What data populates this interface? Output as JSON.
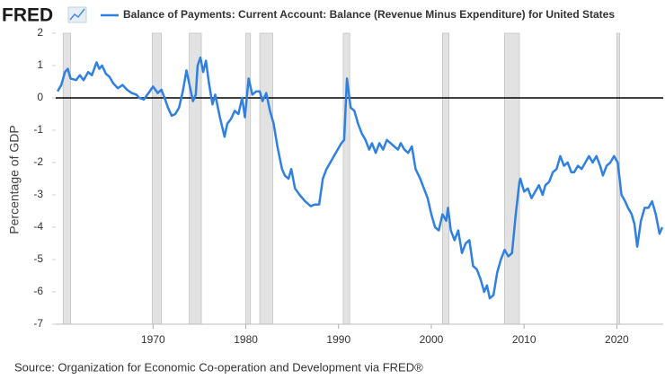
{
  "chart_data": {
    "type": "line",
    "logo": "FRED",
    "source": "Source: Organization for Economic Co-operation and Development via FRED®",
    "ylabel": "Percentage of GDP",
    "xlim": [
      1959.5,
      2025.0
    ],
    "xticks": [
      1970,
      1980,
      1990,
      2000,
      2010,
      2020
    ],
    "ylim": [
      -7,
      2
    ],
    "yticks": [
      2,
      1,
      0,
      -1,
      -2,
      -3,
      -4,
      -5,
      -6,
      -7
    ],
    "hline": 0,
    "shading": [
      [
        1960.3,
        1961.1
      ],
      [
        1969.9,
        1970.9
      ],
      [
        1973.9,
        1975.2
      ],
      [
        1980.0,
        1980.5
      ],
      [
        1981.5,
        1982.9
      ],
      [
        1990.5,
        1991.2
      ],
      [
        2001.2,
        2001.9
      ],
      [
        2007.9,
        2009.5
      ],
      [
        2020.0,
        2020.3
      ]
    ],
    "series": [
      {
        "name": "Balance of Payments: Current Account: Balance (Revenue Minus Expenditure) for United States",
        "color": "#2f80e0",
        "x": [
          1959.7,
          1960.1,
          1960.5,
          1960.8,
          1961.1,
          1961.7,
          1962.1,
          1962.5,
          1963.0,
          1963.4,
          1963.9,
          1964.2,
          1964.5,
          1964.9,
          1965.3,
          1965.7,
          1966.2,
          1966.7,
          1967.2,
          1967.7,
          1968.2,
          1968.5,
          1969.0,
          1969.5,
          1970.0,
          1970.5,
          1970.9,
          1971.3,
          1971.6,
          1972.0,
          1972.4,
          1972.8,
          1973.2,
          1973.6,
          1974.0,
          1974.3,
          1974.6,
          1974.8,
          1975.1,
          1975.4,
          1975.7,
          1976.0,
          1976.4,
          1976.7,
          1977.2,
          1977.7,
          1978.0,
          1978.4,
          1978.8,
          1979.2,
          1979.6,
          1979.9,
          1980.3,
          1980.7,
          1981.1,
          1981.5,
          1981.8,
          1982.2,
          1982.6,
          1983.0,
          1983.4,
          1983.9,
          1984.2,
          1984.6,
          1984.9,
          1985.3,
          1985.8,
          1986.4,
          1987.0,
          1987.4,
          1987.9,
          1988.3,
          1988.7,
          1989.1,
          1989.5,
          1989.9,
          1990.3,
          1990.6,
          1990.9,
          1991.3,
          1991.7,
          1992.1,
          1992.5,
          1992.9,
          1993.3,
          1993.6,
          1994.0,
          1994.4,
          1994.8,
          1995.2,
          1995.6,
          1996.0,
          1996.4,
          1996.7,
          1997.1,
          1997.5,
          1997.9,
          1998.3,
          1998.8,
          1999.2,
          1999.6,
          2000.0,
          2000.4,
          2000.8,
          2001.2,
          2001.6,
          2001.8,
          2002.1,
          2002.5,
          2002.9,
          2003.3,
          2003.7,
          2004.1,
          2004.5,
          2004.9,
          2005.3,
          2005.7,
          2006.0,
          2006.3,
          2006.7,
          2007.1,
          2007.5,
          2007.9,
          2008.3,
          2008.7,
          2009.1,
          2009.5,
          2009.6,
          2010.0,
          2010.4,
          2010.8,
          2011.2,
          2011.6,
          2012.0,
          2012.3,
          2012.7,
          2013.1,
          2013.5,
          2013.9,
          2014.3,
          2014.7,
          2015.1,
          2015.4,
          2015.8,
          2016.2,
          2016.6,
          2017.0,
          2017.4,
          2017.8,
          2018.2,
          2018.5,
          2018.9,
          2019.3,
          2019.7,
          2020.1,
          2020.5,
          2020.9,
          2021.2,
          2021.6,
          2021.9,
          2022.2,
          2022.6,
          2023.0,
          2023.4,
          2023.8,
          2024.2,
          2024.6,
          2024.9
        ],
        "values": [
          0.2,
          0.4,
          0.8,
          0.9,
          0.6,
          0.55,
          0.7,
          0.55,
          0.8,
          0.7,
          1.1,
          0.9,
          1.0,
          0.75,
          0.65,
          0.45,
          0.3,
          0.4,
          0.25,
          0.15,
          0.1,
          0.0,
          -0.05,
          0.15,
          0.35,
          0.15,
          0.25,
          -0.05,
          -0.3,
          -0.55,
          -0.5,
          -0.3,
          0.2,
          0.85,
          0.3,
          -0.1,
          0.1,
          1.0,
          1.25,
          0.8,
          1.15,
          0.5,
          -0.2,
          0.1,
          -0.6,
          -1.2,
          -0.8,
          -0.65,
          -0.4,
          -0.5,
          0.0,
          -0.6,
          0.6,
          0.1,
          0.2,
          0.2,
          -0.1,
          0.15,
          -0.4,
          -0.8,
          -1.5,
          -2.2,
          -2.4,
          -2.5,
          -2.2,
          -2.8,
          -3.0,
          -3.2,
          -3.35,
          -3.3,
          -3.3,
          -2.5,
          -2.2,
          -2.0,
          -1.8,
          -1.6,
          -1.4,
          -1.3,
          0.6,
          -0.3,
          -0.4,
          -0.8,
          -1.1,
          -1.3,
          -1.6,
          -1.4,
          -1.7,
          -1.4,
          -1.6,
          -1.3,
          -1.4,
          -1.5,
          -1.6,
          -1.4,
          -1.6,
          -1.7,
          -1.5,
          -2.2,
          -2.5,
          -2.8,
          -3.1,
          -3.6,
          -4.0,
          -4.1,
          -3.6,
          -3.8,
          -3.4,
          -4.1,
          -4.4,
          -4.1,
          -4.8,
          -4.5,
          -4.4,
          -5.2,
          -5.3,
          -5.6,
          -6.0,
          -5.8,
          -6.2,
          -6.1,
          -5.4,
          -5.0,
          -4.7,
          -4.9,
          -4.8,
          -3.6,
          -2.6,
          -2.5,
          -2.9,
          -2.8,
          -3.1,
          -2.9,
          -2.7,
          -3.0,
          -2.7,
          -2.6,
          -2.3,
          -2.2,
          -1.8,
          -2.1,
          -2.0,
          -2.3,
          -2.3,
          -2.1,
          -2.2,
          -2.0,
          -1.8,
          -2.0,
          -1.8,
          -2.1,
          -2.4,
          -2.1,
          -2.0,
          -1.8,
          -2.0,
          -3.0,
          -3.2,
          -3.4,
          -3.6,
          -3.9,
          -4.6,
          -3.8,
          -3.4,
          -3.4,
          -3.2,
          -3.6,
          -4.2,
          -4.0
        ]
      }
    ]
  }
}
